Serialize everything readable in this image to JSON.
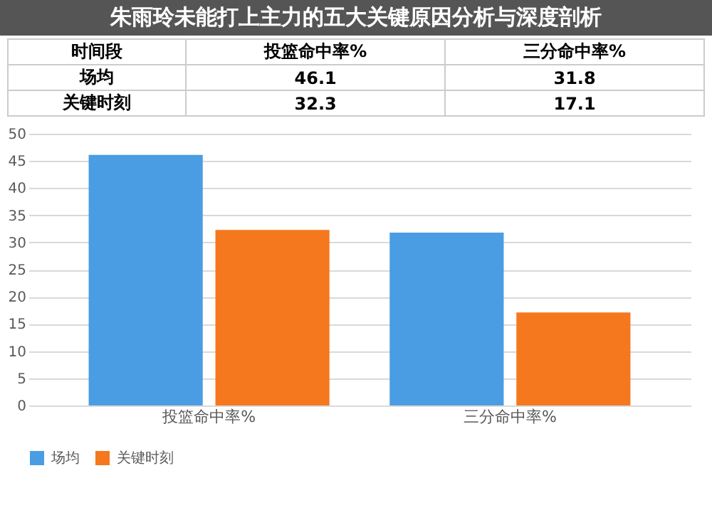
{
  "chart_data": {
    "type": "bar",
    "title": "朱雨玲未能打上主力的五大关键原因分析与深度剖析",
    "annotations": [
      "时间段"
    ],
    "categories": [
      "投篮命中率%",
      "三分命中率%"
    ],
    "series": [
      {
        "name": "场均",
        "color": "#4a9de3",
        "values": [
          46.1,
          31.8
        ]
      },
      {
        "name": "关键时刻",
        "color": "#f5781f",
        "values": [
          32.3,
          17.1
        ]
      }
    ],
    "ylim": [
      0,
      50
    ],
    "yticks": [
      0,
      5,
      10,
      15,
      20,
      25,
      30,
      35,
      40,
      45,
      50
    ],
    "grid": "y",
    "legend": "bottom",
    "data_labels": true
  }
}
